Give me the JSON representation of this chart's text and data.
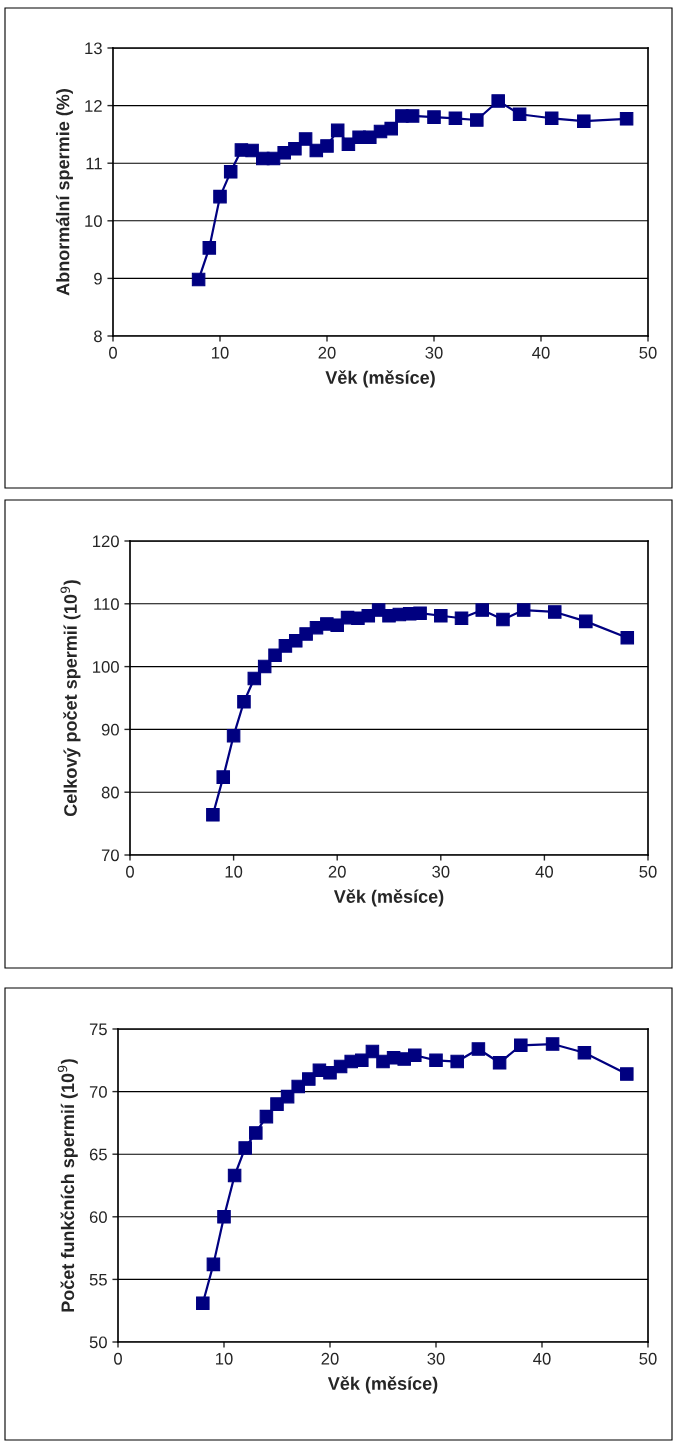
{
  "chart_data": [
    {
      "type": "line",
      "xlabel": "Věk (měsíce)",
      "ylabel": "Abnormální spermie (%)",
      "xlim": [
        0,
        50
      ],
      "xticks": [
        0,
        10,
        20,
        30,
        40,
        50
      ],
      "ylim": [
        8,
        13
      ],
      "yticks": [
        8,
        9,
        10,
        11,
        12,
        13
      ],
      "grid": "y",
      "marker": "square",
      "line_style": "solid",
      "legend": false,
      "x": [
        8,
        9,
        10,
        11,
        12,
        13,
        14,
        15,
        16,
        17,
        18,
        19,
        20,
        21,
        22,
        23,
        24,
        25,
        26,
        27,
        28,
        30,
        32,
        34,
        36,
        38,
        41,
        44,
        48
      ],
      "series": [
        {
          "color": "#000080",
          "values": [
            8.98,
            9.53,
            10.42,
            10.85,
            11.23,
            11.22,
            11.08,
            11.08,
            11.18,
            11.25,
            11.42,
            11.22,
            11.3,
            11.57,
            11.33,
            11.45,
            11.45,
            11.55,
            11.6,
            11.82,
            11.82,
            11.8,
            11.78,
            11.75,
            12.08,
            11.85,
            11.78,
            11.73,
            11.77
          ]
        }
      ]
    },
    {
      "type": "line",
      "xlabel": "Věk (měsíce)",
      "ylabel": "Celkový počet spermií (10$^{9}$)",
      "xlim": [
        0,
        50
      ],
      "xticks": [
        0,
        10,
        20,
        30,
        40,
        50
      ],
      "ylim": [
        70,
        120
      ],
      "yticks": [
        70,
        80,
        90,
        100,
        110,
        120
      ],
      "grid": "y",
      "marker": "square",
      "line_style": "solid",
      "legend": false,
      "x": [
        8,
        9,
        10,
        11,
        12,
        13,
        14,
        15,
        16,
        17,
        18,
        19,
        20,
        21,
        22,
        23,
        24,
        25,
        26,
        27,
        28,
        30,
        32,
        34,
        36,
        38,
        41,
        44,
        48
      ],
      "series": [
        {
          "color": "#000080",
          "values": [
            76.4,
            82.4,
            89,
            94.4,
            98.1,
            100,
            101.8,
            103.3,
            104.1,
            105.2,
            106.2,
            106.8,
            106.6,
            107.8,
            107.7,
            108.1,
            109,
            108.1,
            108.3,
            108.4,
            108.5,
            108.1,
            107.7,
            109,
            107.5,
            109,
            108.7,
            107.2,
            104.6
          ]
        }
      ]
    },
    {
      "type": "line",
      "xlabel": "Věk (měsíce)",
      "ylabel": "Počet funkčních spermií (10$^{9}$)",
      "xlim": [
        0,
        50
      ],
      "xticks": [
        0,
        10,
        20,
        30,
        40,
        50
      ],
      "ylim": [
        50,
        75
      ],
      "yticks": [
        50,
        55,
        60,
        65,
        70,
        75
      ],
      "grid": "y",
      "marker": "square",
      "line_style": "solid",
      "legend": false,
      "x": [
        8,
        9,
        10,
        11,
        12,
        13,
        14,
        15,
        16,
        17,
        18,
        19,
        20,
        21,
        22,
        23,
        24,
        25,
        26,
        27,
        28,
        30,
        32,
        34,
        36,
        38,
        41,
        44,
        48
      ],
      "series": [
        {
          "color": "#000080",
          "values": [
            53.1,
            56.2,
            60,
            63.3,
            65.5,
            66.7,
            68,
            69,
            69.6,
            70.4,
            71,
            71.7,
            71.5,
            72,
            72.4,
            72.5,
            73.2,
            72.4,
            72.7,
            72.6,
            72.9,
            72.5,
            72.4,
            73.4,
            72.3,
            73.7,
            73.8,
            73.1,
            71.4
          ]
        }
      ]
    }
  ]
}
